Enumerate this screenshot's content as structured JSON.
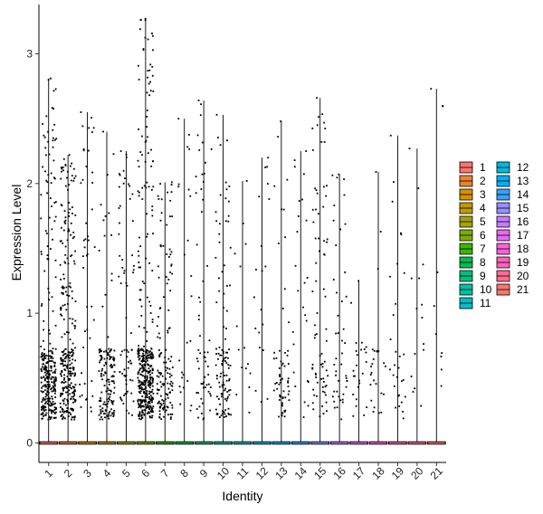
{
  "chart_data": {
    "type": "violin",
    "title": "",
    "xlabel": "Identity",
    "ylabel": "Expression Level",
    "ylim": [
      -0.15,
      3.38
    ],
    "yticks": [
      0,
      1,
      2,
      3
    ],
    "categories": [
      "1",
      "2",
      "3",
      "4",
      "5",
      "6",
      "7",
      "8",
      "9",
      "10",
      "11",
      "12",
      "13",
      "14",
      "15",
      "16",
      "17",
      "18",
      "19",
      "20",
      "21"
    ],
    "colors": [
      "#F8766D",
      "#EA8331",
      "#D89000",
      "#C09B00",
      "#A3A500",
      "#7CAE00",
      "#39B600",
      "#00BB4E",
      "#00BF7D",
      "#00C1A3",
      "#00BFC4",
      "#00BAE0",
      "#00B0F6",
      "#35A2FF",
      "#9590FF",
      "#C77CFF",
      "#E76BF3",
      "#FA62DB",
      "#FF62BC",
      "#FF6C91",
      "#F8766D"
    ],
    "max_values": [
      2.81,
      2.22,
      2.55,
      2.4,
      2.25,
      3.27,
      2.01,
      2.5,
      2.64,
      2.53,
      2.02,
      2.2,
      2.48,
      2.25,
      2.66,
      2.07,
      1.25,
      2.09,
      2.37,
      2.27,
      2.73
    ],
    "point_counts": [
      300,
      290,
      45,
      150,
      70,
      380,
      140,
      25,
      60,
      110,
      15,
      20,
      60,
      25,
      75,
      45,
      25,
      25,
      30,
      15,
      10
    ],
    "low_fraction": [
      0.75,
      0.55,
      0.2,
      0.85,
      0.55,
      0.7,
      0.6,
      0.3,
      0.45,
      0.6,
      0.3,
      0.1,
      0.75,
      0.15,
      0.35,
      0.35,
      0.45,
      0.6,
      0.6,
      0.2,
      0.4
    ],
    "legend": {
      "position": "right",
      "columns": [
        [
          "1",
          "2",
          "3",
          "4",
          "5",
          "6",
          "7",
          "8",
          "9",
          "10",
          "11"
        ],
        [
          "12",
          "13",
          "14",
          "15",
          "16",
          "17",
          "18",
          "19",
          "20",
          "21"
        ]
      ]
    }
  }
}
